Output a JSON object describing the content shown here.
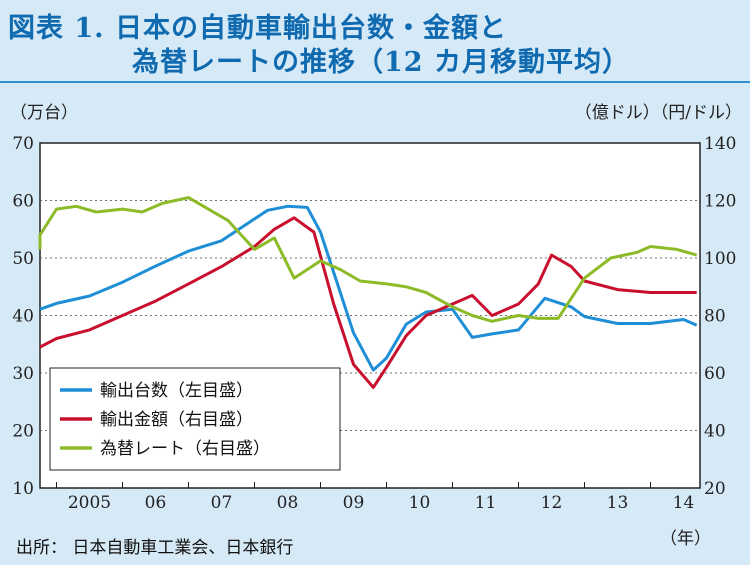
{
  "title_line1": "図表 1. 日本の自動車輸出台数・金額と",
  "title_line2": "為替レートの推移（12 カ月移動平均）",
  "unit_left": "（万台）",
  "unit_right": "（億ドル）（円/ドル）",
  "year_unit": "（年）",
  "source": "出所： 日本自動車工業会、日本銀行",
  "chart_data": {
    "type": "line",
    "x_labels": [
      "2005",
      "06",
      "07",
      "08",
      "09",
      "10",
      "11",
      "12",
      "13",
      "14"
    ],
    "left_axis": {
      "label": "（万台）",
      "ylim": [
        10,
        70
      ],
      "ticks": [
        "10",
        "20",
        "30",
        "40",
        "50",
        "60",
        "70"
      ]
    },
    "right_axis": {
      "label": "（億ドル）（円/ドル）",
      "ylim": [
        20,
        140
      ],
      "ticks": [
        "20",
        "40",
        "60",
        "80",
        "100",
        "120",
        "140"
      ]
    },
    "legend_position": "bottom-left",
    "series": [
      {
        "name": "輸出台数（左目盛）",
        "axis": "left",
        "color": "#1e8fd6",
        "x": [
          2004.0,
          2005.0,
          2005.5,
          2006.0,
          2006.5,
          2007.0,
          2007.5,
          2008.0,
          2008.2,
          2008.5,
          2008.8,
          2009.0,
          2009.5,
          2009.8,
          2010.0,
          2010.3,
          2010.6,
          2011.0,
          2011.3,
          2011.6,
          2012.0,
          2012.4,
          2012.8,
          2013.0,
          2013.5,
          2014.0,
          2014.5,
          2014.7
        ],
        "values": [
          41.1,
          42.1,
          43.4,
          45.8,
          48.6,
          51.2,
          53.0,
          56.8,
          58.3,
          59.0,
          58.8,
          54.5,
          37.0,
          30.5,
          32.6,
          38.5,
          40.6,
          41.1,
          36.2,
          36.8,
          37.5,
          43.0,
          41.5,
          39.8,
          38.6,
          38.6,
          39.3,
          38.3
        ]
      },
      {
        "name": "輸出金額（右目盛）",
        "axis": "right",
        "color": "#c8102e",
        "x": [
          2004.0,
          2005.0,
          2005.5,
          2006.0,
          2006.5,
          2007.0,
          2007.5,
          2008.0,
          2008.3,
          2008.6,
          2008.9,
          2009.2,
          2009.5,
          2009.8,
          2010.0,
          2010.3,
          2010.6,
          2011.0,
          2011.3,
          2011.6,
          2012.0,
          2012.3,
          2012.5,
          2012.8,
          2013.0,
          2013.5,
          2014.0,
          2014.5,
          2014.7
        ],
        "values": [
          69,
          72,
          75,
          80,
          85,
          91,
          97,
          104,
          110,
          114,
          109,
          84,
          63,
          55,
          62,
          73,
          80,
          84,
          87,
          80,
          84,
          91,
          101,
          97,
          92,
          89,
          88,
          88,
          88
        ]
      },
      {
        "name": "為替レート（右目盛）",
        "axis": "right",
        "color": "#8dbb28",
        "x": [
          2004.0,
          2004.5,
          2005.0,
          2005.3,
          2005.6,
          2006.0,
          2006.3,
          2006.6,
          2007.0,
          2007.3,
          2007.6,
          2008.0,
          2008.3,
          2008.6,
          2009.0,
          2009.3,
          2009.6,
          2010.0,
          2010.3,
          2010.6,
          2011.0,
          2011.3,
          2011.6,
          2012.0,
          2012.3,
          2012.6,
          2013.0,
          2013.4,
          2013.8,
          2014.0,
          2014.4,
          2014.7
        ],
        "values": [
          103,
          108,
          117,
          118,
          116,
          117,
          116,
          119,
          121,
          117,
          113,
          103,
          107,
          93,
          99,
          96,
          92,
          91,
          90,
          88,
          83,
          80,
          78,
          80,
          79,
          79,
          93,
          100,
          102,
          104,
          103,
          101
        ]
      }
    ]
  }
}
